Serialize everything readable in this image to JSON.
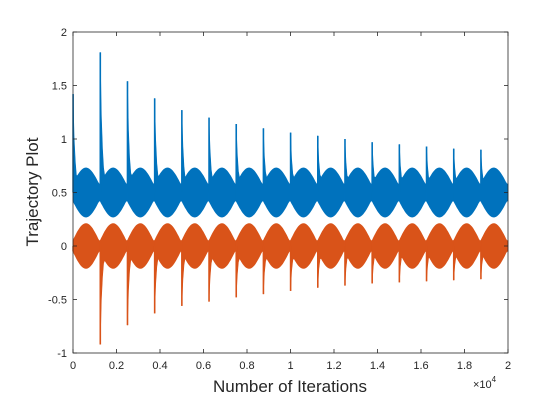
{
  "chart_data": {
    "type": "line",
    "title": "",
    "xlabel": "Number of Iterations",
    "ylabel": "Trajectory Plot",
    "x_exponent_base": "×10",
    "x_exponent_power": "4",
    "xlim": [
      0,
      20000
    ],
    "ylim": [
      -1,
      2
    ],
    "grid": false,
    "box": true,
    "x_ticks": [
      0,
      2000,
      4000,
      6000,
      8000,
      10000,
      12000,
      14000,
      16000,
      18000,
      20000
    ],
    "x_tick_labels": [
      "0",
      "0.2",
      "0.4",
      "0.6",
      "0.8",
      "1",
      "1.2",
      "1.4",
      "1.6",
      "1.8",
      "2"
    ],
    "y_ticks": [
      -1,
      -0.5,
      0,
      0.5,
      1,
      1.5,
      2
    ],
    "y_tick_labels": [
      "-1",
      "-0.5",
      "0",
      "0.5",
      "1",
      "1.5",
      "2"
    ],
    "burst_period": 1250,
    "series": [
      {
        "color": "#0072BD",
        "burst_peaks": [
          1.42,
          1.81,
          1.54,
          1.38,
          1.27,
          1.2,
          1.14,
          1.1,
          1.06,
          1.03,
          1.0,
          0.97,
          0.95,
          0.93,
          0.91,
          0.9
        ],
        "band_center": 0.5,
        "band_min_half_width": 0.08,
        "band_max_half_width": 0.23
      },
      {
        "color": "#D95319",
        "burst_troughs": [
          -0.05,
          -0.92,
          -0.74,
          -0.63,
          -0.56,
          -0.52,
          -0.48,
          -0.45,
          -0.42,
          -0.39,
          -0.37,
          -0.35,
          -0.34,
          -0.33,
          -0.32,
          -0.31
        ],
        "band_center": 0.0,
        "band_min_half_width": 0.05,
        "band_max_half_width": 0.21
      }
    ]
  }
}
